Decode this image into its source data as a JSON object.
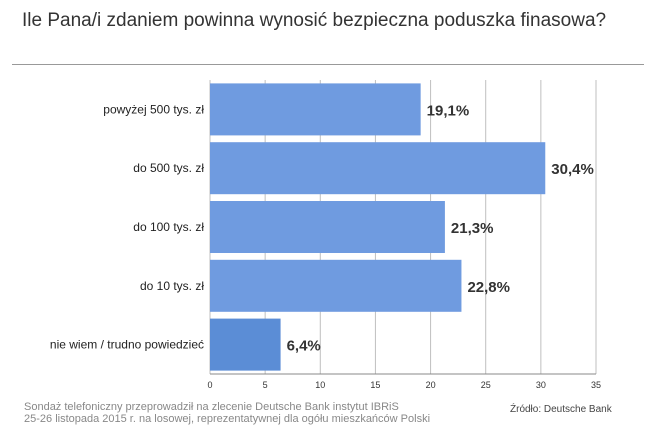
{
  "title": "Ile Pana/i zdaniem powinna wynosić bezpieczna poduszka finasowa?",
  "chart_data": {
    "type": "bar",
    "orientation": "horizontal",
    "categories": [
      "powyżej 500 tys. zł",
      "do 500 tys. zł",
      "do 100 tys. zł",
      "do 10 tys. zł",
      "nie wiem / trudno powiedzieć"
    ],
    "values": [
      19.1,
      30.4,
      21.3,
      22.8,
      6.4
    ],
    "data_labels": [
      "19,1%",
      "30,4%",
      "21,3%",
      "22,8%",
      "6,4%"
    ],
    "xlim": [
      0,
      35
    ],
    "x_ticks": [
      0,
      5,
      10,
      15,
      20,
      25,
      30,
      35
    ],
    "grid": true,
    "colors": {
      "bar": "#6f9be0",
      "bar_last": "#5b8dd6",
      "grid": "#bfbfbf"
    }
  },
  "footer": {
    "note_line1": "Sondaż telefoniczny przeprowadził na zlecenie Deutsche Bank instytut IBRiS",
    "note_line2": "25-26 listopada 2015 r. na losowej, reprezentatywnej dla  ogółu mieszkańców Polski",
    "source": "Źródło: Deutsche Bank"
  }
}
